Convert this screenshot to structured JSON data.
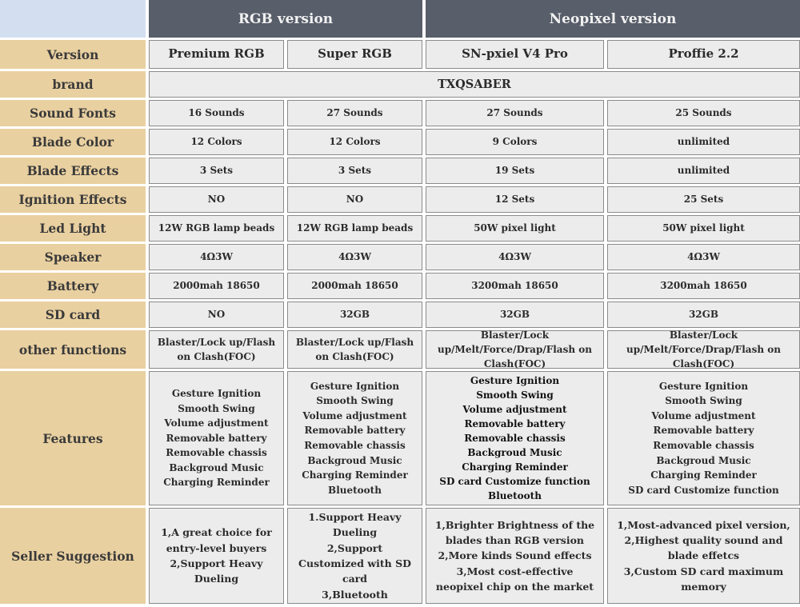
{
  "colors": {
    "group_header_bg": "#585e6a",
    "group_header_text": "#f2f2f2",
    "label_bg": "#e9d0a0",
    "corner_bg": "#d3dff1",
    "cell_bg": "#ececec",
    "cell_border": "#8b8b8b"
  },
  "table": {
    "corner": "",
    "group_headers": {
      "rgb": "RGB version",
      "neopixel": "Neopixel version"
    },
    "version_row": {
      "label": "Version",
      "cells": [
        "Premium RGB",
        "Super RGB",
        "SN-pxiel V4 Pro",
        "Proffie 2.2"
      ]
    },
    "brand_row": {
      "label": "brand",
      "value": "TXQSABER"
    },
    "spec_rows": [
      {
        "label": "Sound Fonts",
        "cells": [
          "16 Sounds",
          "27 Sounds",
          "27 Sounds",
          "25 Sounds"
        ]
      },
      {
        "label": "Blade Color",
        "cells": [
          "12 Colors",
          "12 Colors",
          "9 Colors",
          "unlimited"
        ]
      },
      {
        "label": "Blade Effects",
        "cells": [
          "3 Sets",
          "3 Sets",
          "19 Sets",
          "unlimited"
        ]
      },
      {
        "label": "Ignition Effects",
        "cells": [
          "NO",
          "NO",
          "12 Sets",
          "25 Sets"
        ]
      },
      {
        "label": "Led Light",
        "cells": [
          "12W RGB lamp beads",
          "12W RGB lamp beads",
          "50W pixel light",
          "50W pixel light"
        ]
      },
      {
        "label": "Speaker",
        "cells": [
          "4Ω3W",
          "4Ω3W",
          "4Ω3W",
          "4Ω3W"
        ]
      },
      {
        "label": "Battery",
        "cells": [
          "2000mah 18650",
          "2000mah 18650",
          "3200mah 18650",
          "3200mah 18650"
        ]
      },
      {
        "label": "SD card",
        "cells": [
          "NO",
          "32GB",
          "32GB",
          "32GB"
        ]
      },
      {
        "label": "other functions",
        "cells": [
          "Blaster/Lock up/Flash on Clash(FOC)",
          "Blaster/Lock up/Flash on Clash(FOC)",
          "Blaster/Lock up/Melt/Force/Drap/Flash on Clash(FOC)",
          "Blaster/Lock up/Melt/Force/Drap/Flash on Clash(FOC)"
        ]
      }
    ],
    "features_row": {
      "label": "Features",
      "cells": [
        [
          "Gesture Ignition",
          "Smooth Swing",
          "Volume adjustment",
          "Removable battery",
          "Removable chassis",
          "Backgroud Music",
          "Charging Reminder"
        ],
        [
          "Gesture Ignition",
          "Smooth Swing",
          "Volume adjustment",
          "Removable battery",
          "Removable chassis",
          "Backgroud Music",
          "Charging Reminder",
          "Bluetooth"
        ],
        [
          "Gesture Ignition",
          "Smooth Swing",
          "Volume adjustment",
          "Removable battery",
          "Removable chassis",
          "Backgroud Music",
          "Charging Reminder",
          "SD card Customize function",
          "Bluetooth"
        ],
        [
          "Gesture Ignition",
          "Smooth Swing",
          "Volume adjustment",
          "Removable battery",
          "Removable chassis",
          "Backgroud Music",
          "Charging Reminder",
          "SD card Customize function"
        ]
      ]
    },
    "seller_row": {
      "label": "Seller Suggestion",
      "cells": [
        [
          "1,A great choice for entry-level buyers",
          "2,Support Heavy Dueling"
        ],
        [
          "1.Support Heavy Dueling",
          "2,Support Customized with SD card",
          "3,Bluetooth"
        ],
        [
          "1,Brighter Brightness of the blades than RGB version",
          "2,More kinds Sound effects",
          "3,Most cost-effective neopixel chip on the market"
        ],
        [
          "1,Most-advanced pixel version,",
          "2,Highest quality sound and blade effetcs",
          "3,Custom SD card maximum memory"
        ]
      ]
    }
  }
}
